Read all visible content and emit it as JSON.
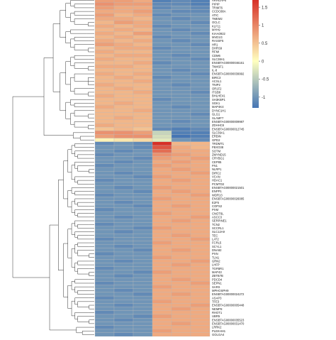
{
  "chart_data": {
    "type": "heatmap",
    "columns": 6,
    "colorbar": {
      "ticks": [
        1.5,
        1,
        0.5,
        0,
        -0.5,
        -1
      ],
      "range": [
        -1.3,
        1.7
      ],
      "colors": {
        "low": "#4575b4",
        "mid": "#ffffbf",
        "high": "#d73027"
      }
    },
    "rows": [
      {
        "gene": "ARHGAP6",
        "values": [
          0.8,
          0.8,
          0.7,
          -1.2,
          -1.1,
          -1.2
        ]
      },
      {
        "gene": "PIPIP",
        "values": [
          0.9,
          0.8,
          0.8,
          -1.1,
          -1.1,
          -1.2
        ]
      },
      {
        "gene": "TRIM76",
        "values": [
          0.8,
          0.7,
          0.7,
          -1.1,
          -1.0,
          -1.1
        ]
      },
      {
        "gene": "CCDC88A",
        "values": [
          0.7,
          0.7,
          0.8,
          -1.0,
          -1.1,
          -1.1
        ]
      },
      {
        "gene": "ATIC",
        "values": [
          0.8,
          0.6,
          0.7,
          -1.1,
          -1.0,
          -1.0
        ]
      },
      {
        "gene": "TMEM2",
        "values": [
          0.7,
          0.7,
          0.6,
          -1.0,
          -1.1,
          -1.0
        ]
      },
      {
        "gene": "OCLC",
        "values": [
          0.6,
          0.8,
          0.7,
          -1.0,
          -1.0,
          -1.1
        ]
      },
      {
        "gene": "KLF11",
        "values": [
          0.7,
          0.6,
          0.7,
          -1.1,
          -1.0,
          -1.0
        ]
      },
      {
        "gene": "MYH9",
        "values": [
          0.6,
          0.7,
          0.6,
          -1.0,
          -1.1,
          -1.0
        ]
      },
      {
        "gene": "KIAA0922",
        "values": [
          0.7,
          0.6,
          0.8,
          -1.0,
          -1.0,
          -1.1
        ]
      },
      {
        "gene": "MVD1G",
        "values": [
          0.6,
          0.7,
          0.6,
          -1.1,
          -1.0,
          -1.0
        ]
      },
      {
        "gene": "RASSF5",
        "values": [
          0.7,
          0.6,
          0.7,
          -1.0,
          -1.1,
          -1.0
        ]
      },
      {
        "gene": "HR1",
        "values": [
          0.8,
          0.7,
          0.6,
          -1.0,
          -1.0,
          -1.1
        ]
      },
      {
        "gene": "DHRS9",
        "values": [
          0.6,
          0.7,
          0.7,
          -1.1,
          -1.0,
          -1.0
        ]
      },
      {
        "gene": "RFMI",
        "values": [
          0.7,
          0.6,
          0.6,
          -1.0,
          -1.0,
          -1.0
        ]
      },
      {
        "gene": "CDM6",
        "values": [
          0.6,
          0.7,
          0.7,
          -1.0,
          -1.1,
          -1.0
        ]
      },
      {
        "gene": "SLC38A1",
        "values": [
          0.7,
          0.6,
          0.6,
          -1.0,
          -1.0,
          -1.1
        ]
      },
      {
        "gene": "ENSBTAG00000046161",
        "values": [
          0.6,
          0.6,
          0.7,
          -1.1,
          -1.0,
          -1.0
        ]
      },
      {
        "gene": "TM4SF1",
        "values": [
          0.7,
          0.7,
          0.6,
          -1.0,
          -1.0,
          -1.0
        ]
      },
      {
        "gene": "IL-8",
        "values": [
          0.6,
          0.6,
          0.6,
          -1.0,
          -1.1,
          -1.0
        ]
      },
      {
        "gene": "ENSBTAG00000039992",
        "values": [
          0.7,
          0.6,
          0.7,
          -1.0,
          -1.0,
          -1.1
        ]
      },
      {
        "gene": "BIRC3",
        "values": [
          0.6,
          0.7,
          0.6,
          -1.1,
          -1.0,
          -1.0
        ]
      },
      {
        "gene": "ACSL1",
        "values": [
          0.6,
          0.6,
          0.7,
          -1.0,
          -1.0,
          -1.0
        ]
      },
      {
        "gene": "TNIP2",
        "values": [
          0.7,
          0.6,
          0.6,
          -1.0,
          -1.1,
          -1.0
        ]
      },
      {
        "gene": "OR1F2",
        "values": [
          0.6,
          0.7,
          0.6,
          -1.0,
          -1.0,
          -1.0
        ]
      },
      {
        "gene": "ITGB8",
        "values": [
          0.6,
          0.6,
          0.7,
          -1.0,
          -1.0,
          -1.1
        ]
      },
      {
        "gene": "BHLHE41",
        "values": [
          0.7,
          0.6,
          0.6,
          -1.0,
          -1.0,
          -1.0
        ]
      },
      {
        "gene": "SH3KBP1",
        "values": [
          0.6,
          0.6,
          0.6,
          -1.1,
          -1.0,
          -1.0
        ]
      },
      {
        "gene": "SGK1",
        "values": [
          0.6,
          0.7,
          0.6,
          -1.0,
          -1.0,
          -1.0
        ]
      },
      {
        "gene": "MAP4K4",
        "values": [
          0.7,
          0.6,
          0.6,
          -1.0,
          -1.1,
          -1.0
        ]
      },
      {
        "gene": "DYNC1H1",
        "values": [
          0.6,
          0.6,
          0.7,
          -1.0,
          -1.0,
          -1.0
        ]
      },
      {
        "gene": "GLG1",
        "values": [
          0.6,
          0.6,
          0.6,
          -1.0,
          -1.0,
          -1.1
        ]
      },
      {
        "gene": "SLAMF7",
        "values": [
          0.6,
          0.7,
          0.6,
          -1.0,
          -1.0,
          -1.0
        ]
      },
      {
        "gene": "ENSBTAG00000009987",
        "values": [
          0.6,
          0.6,
          0.6,
          -1.0,
          -1.1,
          -1.0
        ]
      },
      {
        "gene": "ZDHHC8",
        "values": [
          0.7,
          0.6,
          0.6,
          -1.0,
          -1.0,
          -1.0
        ]
      },
      {
        "gene": "ENSBTAG00000012745",
        "values": [
          0.5,
          0.6,
          0.5,
          -1.1,
          -1.2,
          -1.1
        ]
      },
      {
        "gene": "SLC39A1",
        "values": [
          0.9,
          0.9,
          0.8,
          -0.4,
          -1.2,
          -1.2
        ]
      },
      {
        "gene": "ERBIN",
        "values": [
          0.8,
          0.9,
          0.9,
          -0.3,
          -1.3,
          -1.2
        ]
      },
      {
        "gene": "GPD2",
        "values": [
          0.1,
          0.2,
          0.3,
          -0.2,
          -1.0,
          -1.1
        ]
      },
      {
        "gene": "TRDMT1",
        "values": [
          -1.1,
          -1.0,
          -1.1,
          1.7,
          0.6,
          0.6
        ]
      },
      {
        "gene": "FBXO38",
        "values": [
          -1.0,
          -1.0,
          -1.1,
          1.4,
          0.7,
          0.6
        ]
      },
      {
        "gene": "SOTM",
        "values": [
          -1.0,
          -1.1,
          -1.0,
          1.2,
          0.7,
          0.7
        ]
      },
      {
        "gene": "ZMYND15",
        "values": [
          -1.1,
          -1.0,
          -1.0,
          0.9,
          0.8,
          0.7
        ]
      },
      {
        "gene": "CRYBG1",
        "values": [
          -1.0,
          -1.0,
          -1.1,
          0.8,
          0.7,
          0.8
        ]
      },
      {
        "gene": "CEP85",
        "values": [
          -1.0,
          -1.1,
          -1.0,
          0.7,
          0.8,
          0.7
        ]
      },
      {
        "gene": "FN1",
        "values": [
          -1.1,
          -1.0,
          -1.0,
          0.8,
          0.7,
          0.7
        ]
      },
      {
        "gene": "NLRP1",
        "values": [
          -1.0,
          -1.0,
          -1.0,
          0.7,
          0.8,
          0.7
        ]
      },
      {
        "gene": "DIRC2",
        "values": [
          -1.0,
          -1.1,
          -1.0,
          0.7,
          0.7,
          0.8
        ]
      },
      {
        "gene": "VCAN",
        "values": [
          -1.0,
          -1.0,
          -1.1,
          0.8,
          0.7,
          0.7
        ]
      },
      {
        "gene": "HDAC1",
        "values": [
          -1.1,
          -1.0,
          -1.0,
          0.7,
          0.8,
          0.7
        ]
      },
      {
        "gene": "PCMTD2",
        "values": [
          -1.0,
          -1.0,
          -1.0,
          0.7,
          0.7,
          0.7
        ]
      },
      {
        "gene": "ENSBTAG00000021501",
        "values": [
          -1.0,
          -1.1,
          -1.0,
          0.8,
          0.7,
          0.7
        ]
      },
      {
        "gene": "ENPP1",
        "values": [
          -1.0,
          -1.0,
          -1.1,
          0.7,
          0.8,
          0.7
        ]
      },
      {
        "gene": "WDR13",
        "values": [
          -1.1,
          -1.0,
          -1.0,
          0.7,
          0.7,
          0.8
        ]
      },
      {
        "gene": "ENSBTAG00000026085",
        "values": [
          -1.0,
          -1.0,
          -1.0,
          0.8,
          0.7,
          0.7
        ]
      },
      {
        "gene": "E2F5",
        "values": [
          -1.0,
          -1.1,
          -1.0,
          0.7,
          0.7,
          0.7
        ]
      },
      {
        "gene": "COPS2",
        "values": [
          -1.0,
          -1.0,
          -1.1,
          0.7,
          0.8,
          0.7
        ]
      },
      {
        "gene": "PXM",
        "values": [
          -1.1,
          -1.0,
          -1.0,
          0.7,
          0.7,
          0.7
        ]
      },
      {
        "gene": "CNOT6L",
        "values": [
          -1.0,
          -1.0,
          -1.0,
          0.8,
          0.7,
          0.7
        ]
      },
      {
        "gene": "ASCC3",
        "values": [
          -1.0,
          -1.1,
          -1.0,
          0.7,
          0.7,
          0.8
        ]
      },
      {
        "gene": "SERPINE1",
        "values": [
          -1.0,
          -1.0,
          -1.0,
          0.7,
          0.8,
          0.7
        ]
      },
      {
        "gene": "TCN2",
        "values": [
          -1.1,
          -1.0,
          -1.0,
          0.7,
          0.7,
          0.7
        ]
      },
      {
        "gene": "SCCRL1",
        "values": [
          -1.0,
          -1.0,
          -1.1,
          0.8,
          0.7,
          0.7
        ]
      },
      {
        "gene": "SLC12A9",
        "values": [
          -1.0,
          -1.1,
          -1.0,
          0.7,
          0.7,
          0.7
        ]
      },
      {
        "gene": "TEC",
        "values": [
          -1.0,
          -1.0,
          -1.0,
          0.7,
          0.8,
          0.7
        ]
      },
      {
        "gene": "LAT2",
        "values": [
          -1.1,
          -1.0,
          -1.0,
          0.7,
          0.7,
          0.8
        ]
      },
      {
        "gene": "FCRL5",
        "values": [
          -1.0,
          -1.0,
          -1.0,
          0.8,
          0.7,
          0.7
        ]
      },
      {
        "gene": "SCYL1",
        "values": [
          -1.0,
          -1.1,
          -1.0,
          0.7,
          0.7,
          0.7
        ]
      },
      {
        "gene": "DNA92",
        "values": [
          -1.0,
          -1.0,
          -1.1,
          0.7,
          0.8,
          0.7
        ]
      },
      {
        "gene": "PXN",
        "values": [
          -1.1,
          -1.0,
          -1.0,
          0.7,
          0.7,
          0.7
        ]
      },
      {
        "gene": "TLN1",
        "values": [
          -1.0,
          -1.0,
          -1.0,
          0.8,
          0.7,
          0.7
        ]
      },
      {
        "gene": "GRN2",
        "values": [
          -1.0,
          -1.1,
          -1.0,
          0.7,
          0.7,
          0.8
        ]
      },
      {
        "gene": "LHFP",
        "values": [
          -1.0,
          -1.0,
          -1.0,
          0.7,
          0.8,
          0.7
        ]
      },
      {
        "gene": "TGFBR1",
        "values": [
          -1.1,
          -1.0,
          -1.0,
          0.7,
          0.7,
          0.7
        ]
      },
      {
        "gene": "MAP43",
        "values": [
          -1.0,
          -1.0,
          -1.1,
          0.8,
          0.7,
          0.7
        ]
      },
      {
        "gene": "ZBTB7B",
        "values": [
          -1.0,
          -1.1,
          -1.0,
          0.7,
          0.7,
          0.7
        ]
      },
      {
        "gene": "PDCD4",
        "values": [
          -1.0,
          -1.0,
          -1.0,
          0.7,
          0.8,
          0.7
        ]
      },
      {
        "gene": "SEPN1",
        "values": [
          -1.1,
          -1.0,
          -1.0,
          0.7,
          0.7,
          0.8
        ]
      },
      {
        "gene": "SARS",
        "values": [
          -1.0,
          -1.0,
          -1.0,
          0.8,
          0.7,
          0.7
        ]
      },
      {
        "gene": "MPHOSPH9",
        "values": [
          -1.0,
          -1.1,
          -1.0,
          0.7,
          0.7,
          0.7
        ]
      },
      {
        "gene": "ENSBTAG00000024272",
        "values": [
          -1.0,
          -1.0,
          -1.1,
          0.7,
          0.8,
          0.7
        ]
      },
      {
        "gene": "ASAP3",
        "values": [
          -1.1,
          -1.0,
          -1.0,
          0.7,
          0.7,
          0.7
        ]
      },
      {
        "gene": "TFE3",
        "values": [
          -1.0,
          -1.0,
          -1.0,
          0.8,
          0.7,
          0.7
        ]
      },
      {
        "gene": "ENSBTAG00000005448",
        "values": [
          -1.0,
          -1.1,
          -1.0,
          0.7,
          0.7,
          0.8
        ]
      },
      {
        "gene": "NEMP8",
        "values": [
          -1.0,
          -1.0,
          -1.0,
          0.7,
          0.8,
          0.7
        ]
      },
      {
        "gene": "RHOT1",
        "values": [
          -1.1,
          -1.0,
          -1.0,
          0.7,
          0.7,
          0.7
        ]
      },
      {
        "gene": "UBR5",
        "values": [
          -1.0,
          -1.0,
          -1.1,
          0.8,
          0.7,
          0.7
        ]
      },
      {
        "gene": "ENSBTAG00000035523",
        "values": [
          -1.0,
          -1.1,
          -1.0,
          0.7,
          0.7,
          0.7
        ]
      },
      {
        "gene": "ENSBTAG00000031470",
        "values": [
          -1.0,
          -1.0,
          -1.0,
          0.7,
          0.8,
          0.7
        ]
      },
      {
        "gene": "LRRK2",
        "values": [
          -1.1,
          -1.0,
          -1.0,
          0.7,
          0.7,
          0.7
        ]
      },
      {
        "gene": "PLEKHH1",
        "values": [
          -1.0,
          -1.0,
          -1.0,
          0.8,
          0.7,
          0.7
        ]
      },
      {
        "gene": "GOLGA4",
        "values": [
          -1.0,
          -1.1,
          -1.0,
          0.7,
          0.7,
          0.7
        ]
      }
    ]
  }
}
